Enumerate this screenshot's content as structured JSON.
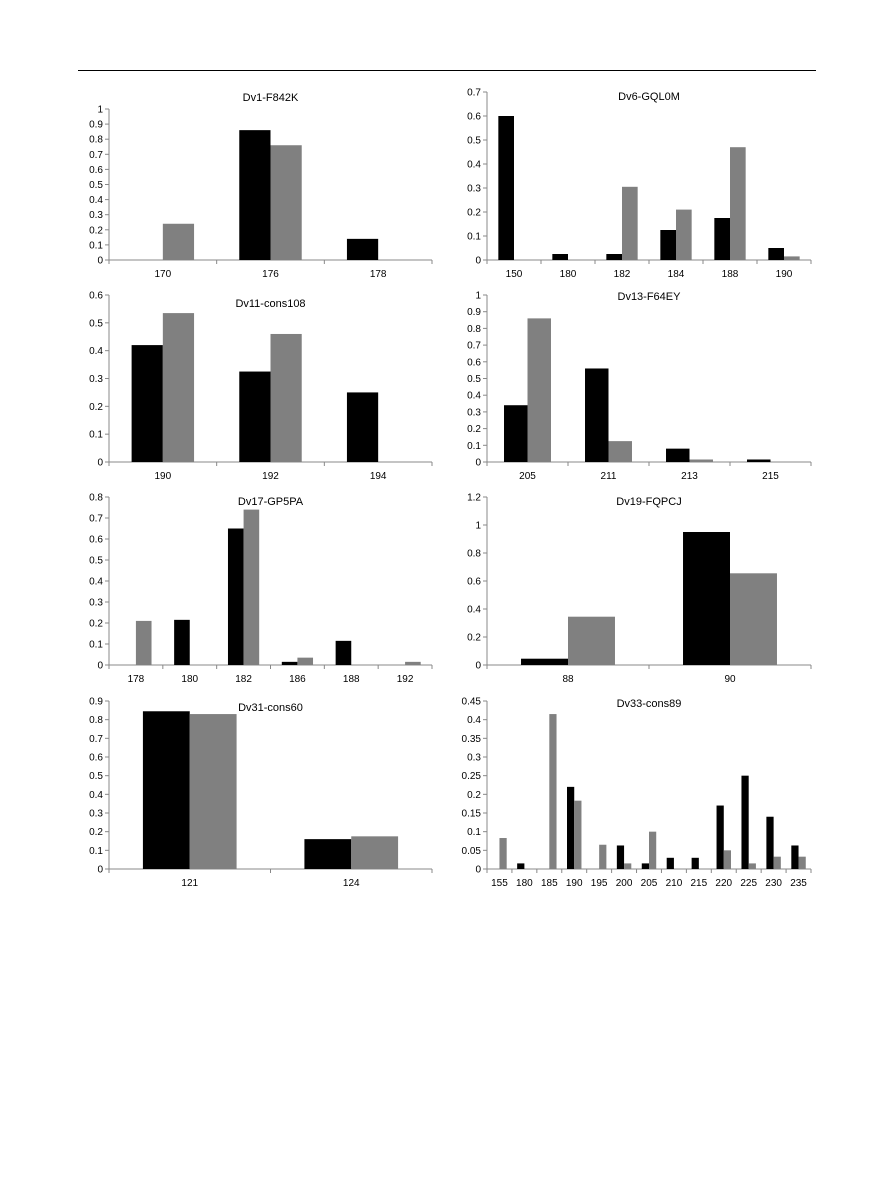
{
  "colors": {
    "series1": "#000000",
    "series2": "#808080",
    "axis": "#888888"
  },
  "chart_data": [
    {
      "type": "bar",
      "title": "Dv1-F842K",
      "categories": [
        "170",
        "176",
        "178"
      ],
      "ylim": [
        0,
        1
      ],
      "ystep": 0.1,
      "yticks": [
        "0",
        "0.1",
        "0.2",
        "0.3",
        "0.4",
        "0.5",
        "0.6",
        "0.7",
        "0.8",
        "0.9",
        "1"
      ],
      "series": [
        {
          "values": [
            0,
            0.86,
            0.14
          ]
        },
        {
          "values": [
            0.24,
            0.76,
            0
          ]
        }
      ],
      "grid": false
    },
    {
      "type": "bar",
      "title": "Dv6-GQL0M",
      "categories": [
        "150",
        "180",
        "182",
        "184",
        "188",
        "190"
      ],
      "ylim": [
        0,
        0.7
      ],
      "ystep": 0.1,
      "yticks": [
        "0",
        "0.1",
        "0.2",
        "0.3",
        "0.4",
        "0.5",
        "0.6",
        "0.7"
      ],
      "series": [
        {
          "values": [
            0.6,
            0.025,
            0.025,
            0.125,
            0.175,
            0.05
          ]
        },
        {
          "values": [
            0,
            0,
            0.305,
            0.21,
            0.47,
            0.015
          ]
        }
      ],
      "grid": false
    },
    {
      "type": "bar",
      "title": "Dv11-cons108",
      "categories": [
        "190",
        "192",
        "194"
      ],
      "ylim": [
        0,
        0.6
      ],
      "ystep": 0.1,
      "yticks": [
        "0",
        "0.1",
        "0.2",
        "0.3",
        "0.4",
        "0.5",
        "0.6"
      ],
      "series": [
        {
          "values": [
            0.42,
            0.325,
            0.25
          ]
        },
        {
          "values": [
            0.535,
            0.46,
            0
          ]
        }
      ],
      "grid": false
    },
    {
      "type": "bar",
      "title": "Dv13-F64EY",
      "categories": [
        "205",
        "211",
        "213",
        "215"
      ],
      "ylim": [
        0,
        1
      ],
      "ystep": 0.1,
      "yticks": [
        "0",
        "0.1",
        "0.2",
        "0.3",
        "0.4",
        "0.5",
        "0.6",
        "0.7",
        "0.8",
        "0.9",
        "1"
      ],
      "series": [
        {
          "values": [
            0.34,
            0.56,
            0.08,
            0.015
          ]
        },
        {
          "values": [
            0.86,
            0.125,
            0.015,
            0
          ]
        }
      ],
      "grid": false
    },
    {
      "type": "bar",
      "title": "Dv17-GP5PA",
      "categories": [
        "178",
        "180",
        "182",
        "186",
        "188",
        "192"
      ],
      "ylim": [
        0,
        0.8
      ],
      "ystep": 0.1,
      "yticks": [
        "0",
        "0.1",
        "0.2",
        "0.3",
        "0.4",
        "0.5",
        "0.6",
        "0.7",
        "0.8"
      ],
      "series": [
        {
          "values": [
            0,
            0.215,
            0.65,
            0.015,
            0.115,
            0
          ]
        },
        {
          "values": [
            0.21,
            0,
            0.74,
            0.035,
            0,
            0.015
          ]
        }
      ],
      "grid": false
    },
    {
      "type": "bar",
      "title": "Dv19-FQPCJ",
      "categories": [
        "88",
        "90"
      ],
      "ylim": [
        0,
        1.2
      ],
      "ystep": 0.2,
      "yticks": [
        "0",
        "0.2",
        "0.4",
        "0.6",
        "0.8",
        "1",
        "1.2"
      ],
      "series": [
        {
          "values": [
            0.045,
            0.95
          ]
        },
        {
          "values": [
            0.345,
            0.655
          ]
        }
      ],
      "grid": false
    },
    {
      "type": "bar",
      "title": "Dv31-cons60",
      "categories": [
        "121",
        "124"
      ],
      "ylim": [
        0,
        0.9
      ],
      "ystep": 0.1,
      "yticks": [
        "0",
        "0.1",
        "0.2",
        "0.3",
        "0.4",
        "0.5",
        "0.6",
        "0.7",
        "0.8",
        "0.9"
      ],
      "series": [
        {
          "values": [
            0.845,
            0.16
          ]
        },
        {
          "values": [
            0.83,
            0.175
          ]
        }
      ],
      "grid": false
    },
    {
      "type": "bar",
      "title": "Dv33-cons89",
      "categories": [
        "155",
        "180",
        "185",
        "190",
        "195",
        "200",
        "205",
        "210",
        "215",
        "220",
        "225",
        "230",
        "235"
      ],
      "ylim": [
        0,
        0.45
      ],
      "ystep": 0.05,
      "yticks": [
        "0",
        "0.05",
        "0.1",
        "0.15",
        "0.2",
        "0.25",
        "0.3",
        "0.35",
        "0.4",
        "0.45"
      ],
      "series": [
        {
          "values": [
            0,
            0.015,
            0,
            0.22,
            0,
            0.063,
            0.015,
            0.03,
            0.03,
            0.17,
            0.25,
            0.14,
            0.063
          ]
        },
        {
          "values": [
            0.083,
            0,
            0.415,
            0.183,
            0.065,
            0.015,
            0.1,
            0,
            0,
            0.05,
            0.015,
            0.033,
            0.033
          ]
        }
      ],
      "grid": false
    }
  ]
}
